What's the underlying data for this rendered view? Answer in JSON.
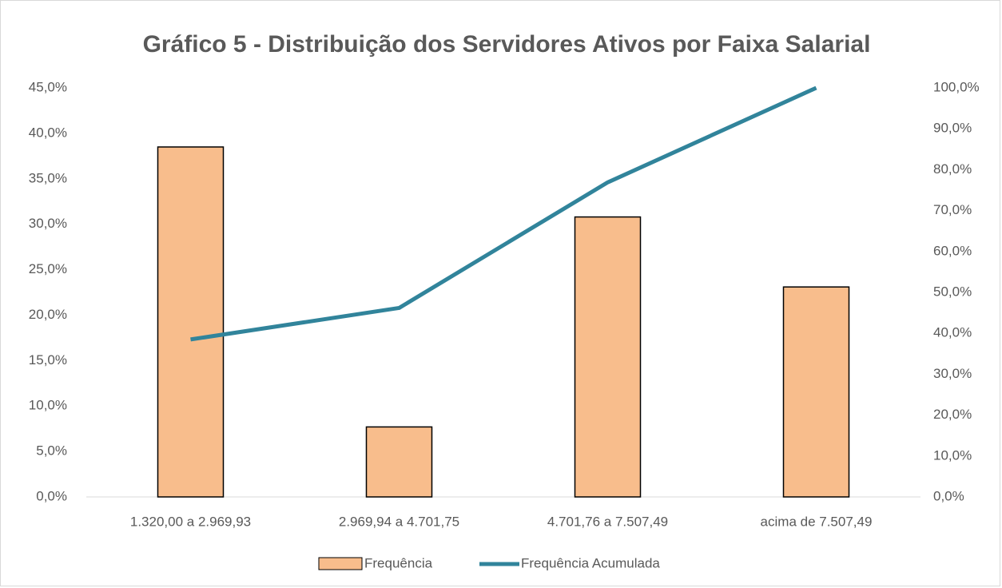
{
  "chart_data": {
    "type": "bar_line",
    "title": "Gráfico 5 - Distribuição dos Servidores Ativos por Faixa Salarial",
    "categories": [
      "1.320,00 a 2.969,93",
      "2.969,94 a 4.701,75",
      "4.701,76 a  7.507,49",
      "acima de 7.507,49"
    ],
    "series": [
      {
        "name": "Frequência",
        "type": "bar",
        "color": "#f8bd8c",
        "values": [
          38.5,
          7.7,
          30.8,
          23.1
        ]
      },
      {
        "name": "Frequência Acumulada",
        "type": "line",
        "axis": "y2",
        "color": "#31849b",
        "values": [
          38.5,
          46.2,
          76.9,
          100
        ]
      }
    ],
    "ylim": [
      0,
      45
    ],
    "yticks": [
      {
        "value": 0,
        "label": "0,0%"
      },
      {
        "value": 5,
        "label": "5,0%"
      },
      {
        "value": 10,
        "label": "10,0%"
      },
      {
        "value": 15,
        "label": "15,0%"
      },
      {
        "value": 20,
        "label": "20,0%"
      },
      {
        "value": 25,
        "label": "25,0%"
      },
      {
        "value": 30,
        "label": "30,0%"
      },
      {
        "value": 35,
        "label": "35,0%"
      },
      {
        "value": 40,
        "label": "40,0%"
      },
      {
        "value": 45,
        "label": "45,0%"
      }
    ],
    "y2lim": [
      0,
      100
    ],
    "y2ticks": [
      {
        "value": 0,
        "label": "0,0%"
      },
      {
        "value": 10,
        "label": "10,0%"
      },
      {
        "value": 20,
        "label": "20,0%"
      },
      {
        "value": 30,
        "label": "30,0%"
      },
      {
        "value": 40,
        "label": "40,0%"
      },
      {
        "value": 50,
        "label": "50,0%"
      },
      {
        "value": 60,
        "label": "60,0%"
      },
      {
        "value": 70,
        "label": "70,0%"
      },
      {
        "value": 80,
        "label": "80,0%"
      },
      {
        "value": 90,
        "label": "90,0%"
      },
      {
        "value": 100,
        "label": "100,0%"
      }
    ],
    "grid": false,
    "legend": "bottom"
  }
}
